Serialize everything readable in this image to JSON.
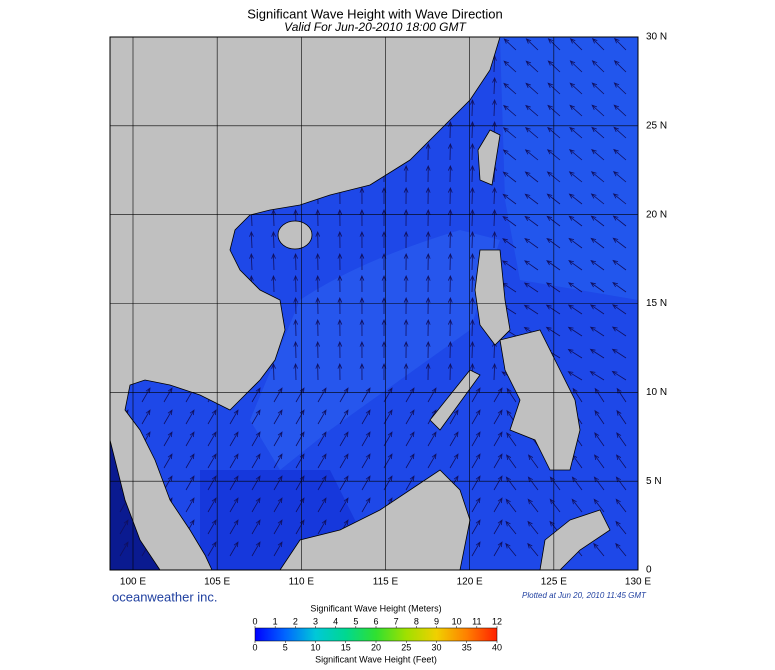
{
  "map": {
    "title": "Significant Wave Height with Wave Direction",
    "subtitle": "Valid For Jun-20-2010 18:00 GMT",
    "lon_ticks": [
      {
        "value": 100,
        "label": "100 E"
      },
      {
        "value": 105,
        "label": "105 E"
      },
      {
        "value": 110,
        "label": "110 E"
      },
      {
        "value": 115,
        "label": "115 E"
      },
      {
        "value": 120,
        "label": "120 E"
      },
      {
        "value": 125,
        "label": "125 E"
      },
      {
        "value": 130,
        "label": "130 E"
      }
    ],
    "lat_ticks": [
      {
        "value": 0,
        "label": "0"
      },
      {
        "value": 5,
        "label": "5 N"
      },
      {
        "value": 10,
        "label": "10 N"
      },
      {
        "value": 15,
        "label": "15 N"
      },
      {
        "value": 20,
        "label": "20 N"
      },
      {
        "value": 25,
        "label": "25 N"
      },
      {
        "value": 30,
        "label": "30 N"
      }
    ],
    "credit": "oceanweather inc.",
    "plotted": "Plotted at Jun 20, 2010 11:45 GMT",
    "colorbar": {
      "meters_title": "Significant Wave Height (Meters)",
      "feet_title": "Significant Wave Height (Feet)",
      "meters_lim": [
        0,
        12
      ],
      "meters_ticks": [
        0,
        1,
        2,
        3,
        4,
        5,
        6,
        7,
        8,
        9,
        10,
        11,
        12
      ],
      "feet_lim": [
        0,
        40
      ],
      "feet_ticks": [
        0,
        5,
        10,
        15,
        20,
        25,
        30,
        35,
        40
      ],
      "colors": [
        "#0000ff",
        "#0066ff",
        "#00c8d8",
        "#00d890",
        "#30e030",
        "#a0e000",
        "#f0d000",
        "#ff8000",
        "#ff2000"
      ]
    }
  }
}
